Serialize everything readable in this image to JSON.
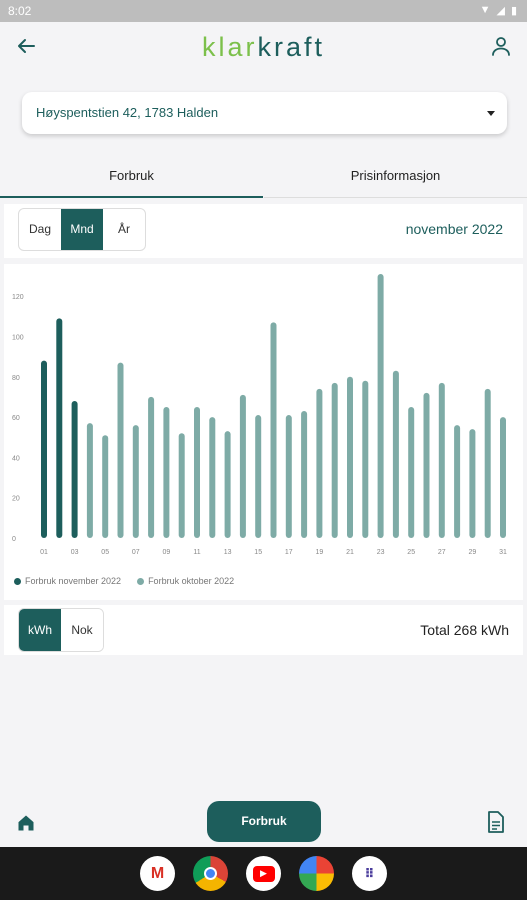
{
  "status_bar": {
    "time": "8:02"
  },
  "app": {
    "logo_part1": "klar",
    "logo_part2": "kraft"
  },
  "address": {
    "selected": "Høyspentstien 42, 1783 Halden"
  },
  "tabs": [
    {
      "label": "Forbruk"
    },
    {
      "label": "Prisinformasjon"
    }
  ],
  "period": {
    "options": [
      {
        "label": "Dag"
      },
      {
        "label": "Mnd"
      },
      {
        "label": "År"
      }
    ],
    "selected": "Mnd",
    "current": "november 2022"
  },
  "units": {
    "options": [
      {
        "label": "kWh"
      },
      {
        "label": "Nok"
      }
    ],
    "selected": "kWh",
    "total": "Total 268 kWh"
  },
  "bottom_nav": {
    "main_button": "Forbruk"
  },
  "colors": {
    "accent": "#1d5e5c",
    "accent_light": "#7eaba6",
    "logo_green": "#7cc04b"
  },
  "chart_data": {
    "type": "bar",
    "xlabel": "",
    "ylabel": "",
    "ylim": [
      0,
      130
    ],
    "yticks": [
      0,
      20,
      40,
      60,
      80,
      100,
      120
    ],
    "categories": [
      "01",
      "02",
      "03",
      "04",
      "05",
      "06",
      "07",
      "08",
      "09",
      "10",
      "11",
      "12",
      "13",
      "14",
      "15",
      "16",
      "17",
      "18",
      "19",
      "20",
      "21",
      "22",
      "23",
      "24",
      "25",
      "26",
      "27",
      "28",
      "29",
      "30",
      "31"
    ],
    "xtick_labels": [
      "01",
      "03",
      "05",
      "07",
      "09",
      "11",
      "13",
      "15",
      "17",
      "19",
      "21",
      "23",
      "25",
      "27",
      "29",
      "31"
    ],
    "series": [
      {
        "name": "Forbruk november 2022",
        "color": "#1d5e5c",
        "values": [
          88,
          109,
          68,
          null,
          null,
          null,
          null,
          null,
          null,
          null,
          null,
          null,
          null,
          null,
          null,
          null,
          null,
          null,
          null,
          null,
          null,
          null,
          null,
          null,
          null,
          null,
          null,
          null,
          null,
          null,
          null
        ]
      },
      {
        "name": "Forbruk oktober 2022",
        "color": "#7eaba6",
        "values": [
          null,
          null,
          null,
          57,
          51,
          87,
          56,
          70,
          65,
          52,
          65,
          60,
          53,
          71,
          61,
          107,
          61,
          63,
          74,
          77,
          80,
          78,
          131,
          83,
          65,
          72,
          77,
          56,
          54,
          74,
          60
        ]
      }
    ],
    "legend_position": "bottom-left"
  }
}
